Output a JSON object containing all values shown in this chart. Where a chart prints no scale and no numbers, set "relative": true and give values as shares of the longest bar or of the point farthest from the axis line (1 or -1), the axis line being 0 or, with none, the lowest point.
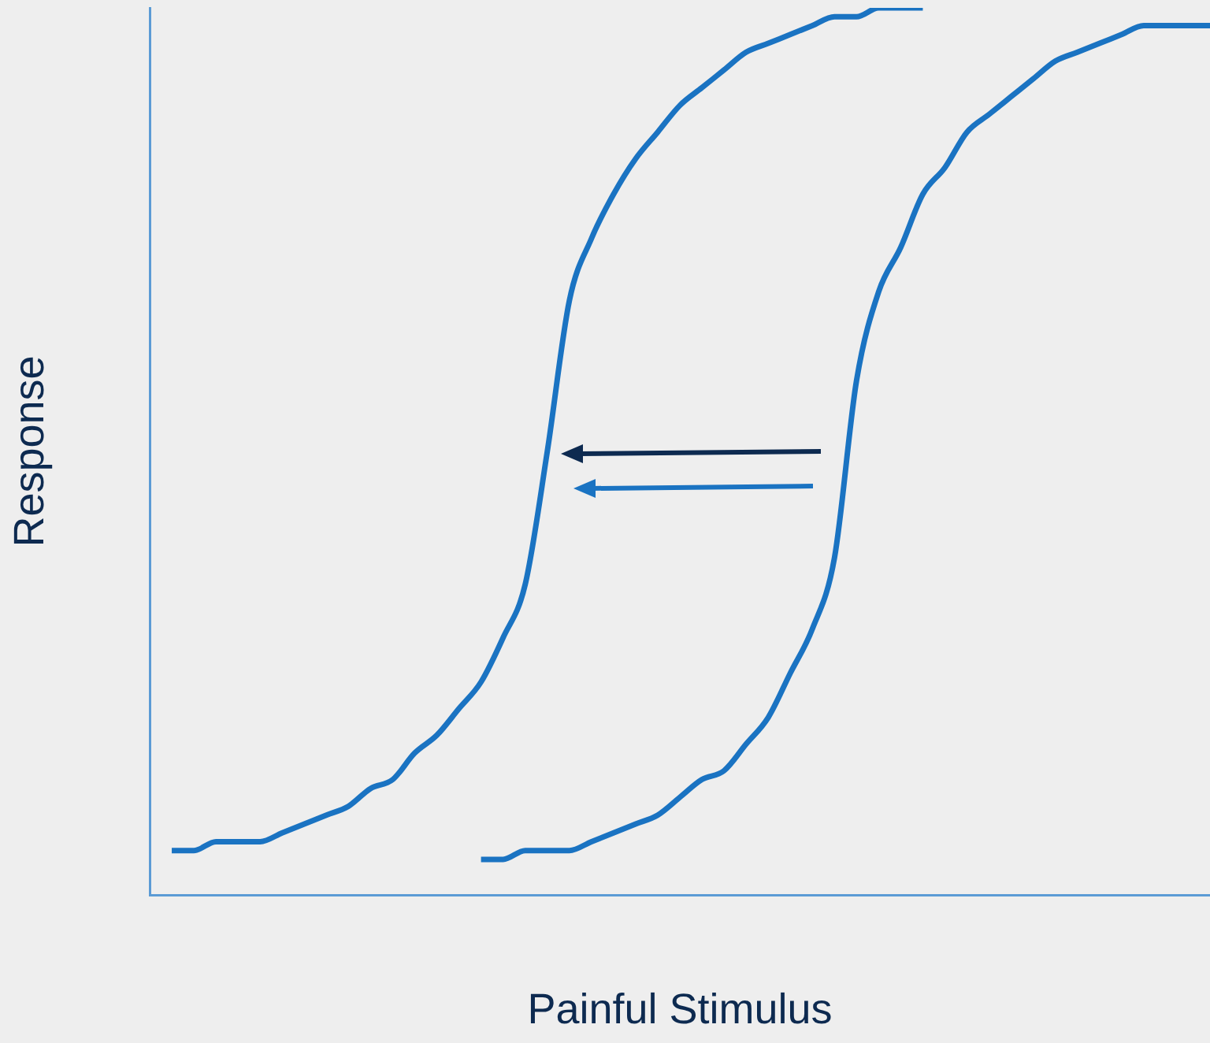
{
  "chart_data": {
    "type": "line",
    "relative": true,
    "xlabel": "Painful Stimulus",
    "ylabel": "Response",
    "grid": false,
    "legend": false,
    "marker": "none",
    "tick_labels": false,
    "categories": [
      null,
      null,
      null,
      null,
      null,
      null,
      null,
      null,
      null,
      null,
      null,
      null,
      null,
      null,
      null,
      null,
      null,
      null,
      null,
      null,
      null,
      null,
      null,
      null,
      null,
      null,
      null,
      null,
      null,
      null,
      null,
      null,
      null,
      null,
      null,
      null,
      null,
      null,
      null,
      null,
      null,
      null,
      null,
      null,
      null,
      null,
      null,
      null,
      null
    ],
    "series": [
      {
        "color": "#1a73c2",
        "values": [
          null,
          0.05,
          0.05,
          0.06,
          0.06,
          0.06,
          0.07,
          0.08,
          0.09,
          0.1,
          0.12,
          0.13,
          0.16,
          0.18,
          0.21,
          0.24,
          0.29,
          0.35,
          0.5,
          0.67,
          0.74,
          0.79,
          0.83,
          0.86,
          0.89,
          0.91,
          0.93,
          0.95,
          0.96,
          0.97,
          0.98,
          0.99,
          0.99,
          1,
          1,
          1,
          null,
          null,
          null,
          null,
          null,
          null,
          null,
          null,
          null,
          null,
          null,
          null,
          null
        ]
      },
      {
        "color": "#1a73c2",
        "values": [
          null,
          null,
          null,
          null,
          null,
          null,
          null,
          null,
          null,
          null,
          null,
          null,
          null,
          null,
          null,
          0.04,
          0.04,
          0.05,
          0.05,
          0.05,
          0.06,
          0.07,
          0.08,
          0.09,
          0.11,
          0.13,
          0.14,
          0.17,
          0.2,
          0.25,
          0.3,
          0.38,
          0.58,
          0.68,
          0.73,
          0.79,
          0.82,
          0.86,
          0.88,
          0.9,
          0.92,
          0.94,
          0.95,
          0.96,
          0.97,
          0.98,
          0.98,
          0.98,
          0.98
        ]
      }
    ]
  }
}
